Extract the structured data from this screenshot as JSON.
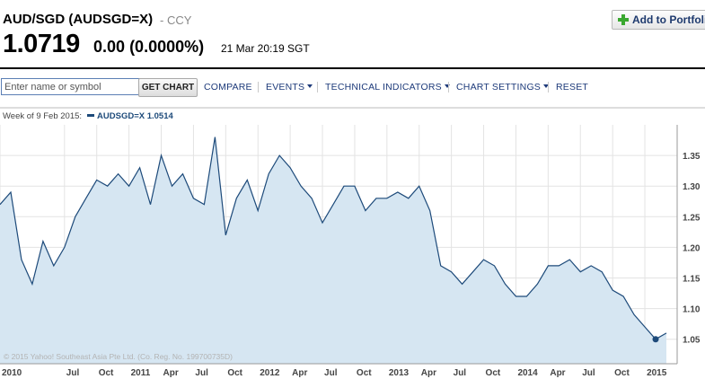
{
  "quote": {
    "title": "AUD/SGD (AUDSGD=X)",
    "exchange": "- CCY",
    "price": "1.0719",
    "change": "0.00",
    "change_pct": "(0.0000%)",
    "time": "21 Mar 20:19 SGT"
  },
  "header": {
    "add_button_label": "Add to Portfolio"
  },
  "toolbar": {
    "search_placeholder": "Enter name or symbol",
    "get_chart": "GET CHART",
    "compare": "COMPARE",
    "events": "EVENTS",
    "technical": "TECHNICAL INDICATORS",
    "settings": "CHART SETTINGS",
    "reset": "RESET"
  },
  "legend": {
    "week": "Week of 9 Feb 2015:",
    "series_label": "AUDSGD=X 1.0514"
  },
  "colors": {
    "line": "#1d4a7a",
    "fill": "#d6e6f2",
    "grid": "#e3e3e3",
    "link": "#1d3a7a",
    "marker": "#1d4a7a"
  },
  "chart_data": {
    "type": "area",
    "series": [
      {
        "name": "AUDSGD=X",
        "x": [
          "2010-01",
          "2010-02",
          "2010-03",
          "2010-04",
          "2010-05",
          "2010-06",
          "2010-07",
          "2010-08",
          "2010-09",
          "2010-10",
          "2010-11",
          "2010-12",
          "2011-01",
          "2011-02",
          "2011-03",
          "2011-04",
          "2011-05",
          "2011-06",
          "2011-07",
          "2011-08",
          "2011-09",
          "2011-10",
          "2011-11",
          "2011-12",
          "2012-01",
          "2012-02",
          "2012-03",
          "2012-04",
          "2012-05",
          "2012-06",
          "2012-07",
          "2012-08",
          "2012-09",
          "2012-10",
          "2012-11",
          "2012-12",
          "2013-01",
          "2013-02",
          "2013-03",
          "2013-04",
          "2013-05",
          "2013-06",
          "2013-07",
          "2013-08",
          "2013-09",
          "2013-10",
          "2013-11",
          "2013-12",
          "2014-01",
          "2014-02",
          "2014-03",
          "2014-04",
          "2014-05",
          "2014-06",
          "2014-07",
          "2014-08",
          "2014-09",
          "2014-10",
          "2014-11",
          "2014-12",
          "2015-01",
          "2015-02",
          "2015-03"
        ],
        "values": [
          1.27,
          1.29,
          1.18,
          1.14,
          1.21,
          1.17,
          1.2,
          1.25,
          1.28,
          1.31,
          1.3,
          1.32,
          1.3,
          1.33,
          1.27,
          1.35,
          1.3,
          1.32,
          1.28,
          1.27,
          1.38,
          1.22,
          1.28,
          1.31,
          1.26,
          1.32,
          1.35,
          1.33,
          1.3,
          1.28,
          1.24,
          1.27,
          1.3,
          1.3,
          1.26,
          1.28,
          1.28,
          1.29,
          1.28,
          1.3,
          1.26,
          1.17,
          1.16,
          1.14,
          1.16,
          1.18,
          1.17,
          1.14,
          1.12,
          1.12,
          1.14,
          1.17,
          1.17,
          1.18,
          1.16,
          1.17,
          1.16,
          1.13,
          1.12,
          1.09,
          1.07,
          1.05,
          1.06
        ]
      }
    ],
    "x_tick_labels": [
      "2010",
      "Jul",
      "Oct",
      "2011",
      "Apr",
      "Jul",
      "Oct",
      "2012",
      "Apr",
      "Jul",
      "Oct",
      "2013",
      "Apr",
      "Jul",
      "Oct",
      "2014",
      "Apr",
      "Jul",
      "Oct",
      "2015"
    ],
    "y_tick_labels": [
      "1.35",
      "1.30",
      "1.25",
      "1.20",
      "1.15",
      "1.10",
      "1.05"
    ],
    "ylim": [
      1.01,
      1.4
    ],
    "copyright": "© 2015 Yahoo! Southeast Asia Pte Ltd. (Co. Reg. No. 199700735D)",
    "grid": true
  }
}
